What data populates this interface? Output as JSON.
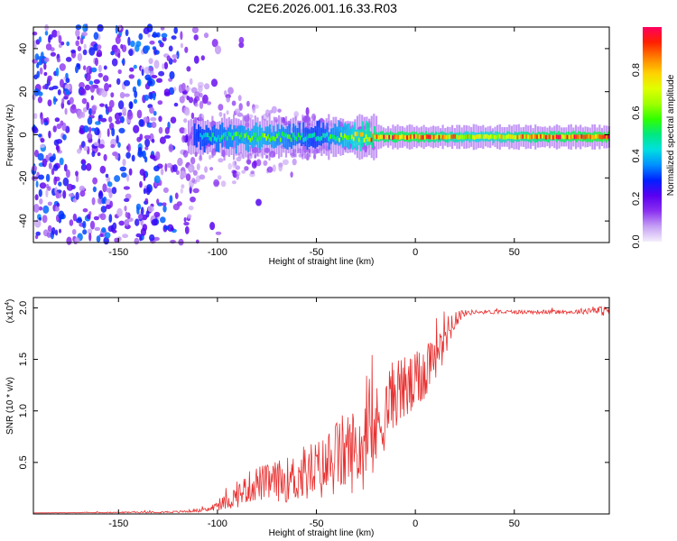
{
  "title": "C2E6.2026.001.16.33.R03",
  "chart_data": [
    {
      "type": "heatmap",
      "id": "spectrogram",
      "xlabel": "Height of straight line (km)",
      "ylabel": "Frequency (Hz)",
      "xlim": [
        -193,
        98
      ],
      "ylim": [
        -50,
        50
      ],
      "xticks": [
        -150,
        -100,
        -50,
        0,
        50
      ],
      "yticks": [
        -40,
        -20,
        0,
        20,
        40
      ],
      "colorbar": {
        "label": "Normalized spectral amplitude",
        "range": [
          0.0,
          1.0
        ],
        "ticks": [
          "0.0",
          "0.2",
          "0.4",
          "0.6",
          "0.8"
        ],
        "tick_values": [
          0.0,
          0.2,
          0.4,
          0.6,
          0.8
        ],
        "colors": [
          "#f4eefc",
          "#c6a0f4",
          "#8a30f0",
          "#5a00f0",
          "#0020ff",
          "#0090ff",
          "#00e0e0",
          "#00e880",
          "#30ff00",
          "#a0ff00",
          "#e0ff00",
          "#ffd000",
          "#ff8000",
          "#ff2000",
          "#ff0060"
        ]
      },
      "signal_band": {
        "center_hz": -1,
        "onset_km": -115,
        "description_points": [
          {
            "x": -110,
            "amp": 0.45
          },
          {
            "x": -80,
            "amp": 0.65
          },
          {
            "x": -50,
            "amp": 0.45
          },
          {
            "x": -20,
            "amp": 0.9
          },
          {
            "x": 0,
            "amp": 0.95
          },
          {
            "x": 30,
            "amp": 0.75
          },
          {
            "x": 60,
            "amp": 0.9
          },
          {
            "x": 95,
            "amp": 0.97
          }
        ]
      }
    },
    {
      "type": "line",
      "id": "snr",
      "xlabel": "Height of straight line (km)",
      "ylabel": "SNR (10 * v/v)",
      "multiplier_label": "(x10",
      "multiplier_exp": "4",
      "xlim": [
        -193,
        98
      ],
      "ylim": [
        0,
        2.1
      ],
      "xticks": [
        -150,
        -100,
        -50,
        0,
        50
      ],
      "yticks": [
        0.5,
        1.0,
        1.5,
        2.0
      ],
      "ytick_labels": [
        "0.5",
        "1.0",
        "1.5",
        "2.0"
      ],
      "color": "#e83030",
      "envelope_x": [
        -193,
        -150,
        -120,
        -105,
        -100,
        -95,
        -90,
        -85,
        -80,
        -75,
        -70,
        -65,
        -60,
        -55,
        -50,
        -45,
        -40,
        -35,
        -30,
        -25,
        -20,
        -15,
        -10,
        -5,
        0,
        5,
        10,
        15,
        20,
        25,
        30,
        40,
        60,
        80,
        90,
        98
      ],
      "envelope_y": [
        0.01,
        0.015,
        0.02,
        0.04,
        0.08,
        0.12,
        0.18,
        0.25,
        0.3,
        0.3,
        0.32,
        0.33,
        0.35,
        0.4,
        0.42,
        0.45,
        0.55,
        0.6,
        0.62,
        0.65,
        0.8,
        1.0,
        1.2,
        1.2,
        1.25,
        1.4,
        1.6,
        1.75,
        1.9,
        1.95,
        1.96,
        1.96,
        1.96,
        1.96,
        1.98,
        1.96
      ],
      "noise_amp": [
        0.0,
        0.005,
        0.01,
        0.02,
        0.05,
        0.08,
        0.12,
        0.15,
        0.18,
        0.18,
        0.2,
        0.22,
        0.25,
        0.3,
        0.3,
        0.32,
        0.38,
        0.4,
        0.42,
        0.42,
        0.45,
        0.35,
        0.35,
        0.35,
        0.3,
        0.3,
        0.3,
        0.25,
        0.1,
        0.03,
        0.02,
        0.02,
        0.02,
        0.02,
        0.04,
        0.05
      ]
    }
  ]
}
